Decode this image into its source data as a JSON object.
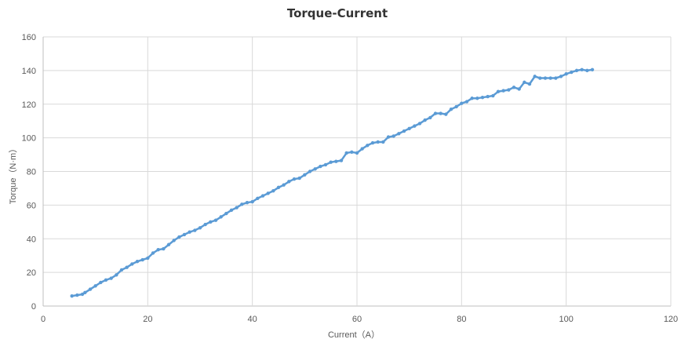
{
  "chart_data": {
    "type": "scatter",
    "title": "Torque-Current",
    "xlabel": "Current（A）",
    "ylabel": "Torque（N·m）",
    "xlim": [
      0,
      120
    ],
    "ylim": [
      0,
      160
    ],
    "xticks": [
      "0",
      "20",
      "40",
      "60",
      "80",
      "100",
      "120"
    ],
    "yticks": [
      "0",
      "20",
      "40",
      "60",
      "80",
      "100",
      "120",
      "140",
      "160"
    ],
    "grid": true,
    "series": [
      {
        "color": "#5b9bd5",
        "x": [
          5.5,
          6.5,
          7.5,
          8.0,
          9.0,
          10.0,
          11.0,
          12.0,
          13.0,
          14.0,
          15.0,
          16.0,
          17.0,
          18.0,
          19.0,
          20.0,
          21.0,
          22.0,
          23.0,
          24.0,
          25.0,
          26.0,
          27.0,
          28.0,
          29.0,
          30.0,
          31.0,
          32.0,
          33.0,
          34.0,
          35.0,
          36.0,
          37.0,
          38.0,
          39.0,
          40.0,
          41.0,
          42.0,
          43.0,
          44.0,
          45.0,
          46.0,
          47.0,
          48.0,
          49.0,
          50.0,
          51.0,
          52.0,
          53.0,
          54.0,
          55.0,
          56.0,
          57.0,
          58.0,
          59.0,
          60.0,
          61.0,
          62.0,
          63.0,
          64.0,
          65.0,
          66.0,
          67.0,
          68.0,
          69.0,
          70.0,
          71.0,
          72.0,
          73.0,
          74.0,
          75.0,
          76.0,
          77.0,
          78.0,
          79.0,
          80.0,
          81.0,
          82.0,
          83.0,
          84.0,
          85.0,
          86.0,
          87.0,
          88.0,
          89.0,
          90.0,
          91.0,
          92.0,
          93.0,
          94.0,
          95.0,
          96.0,
          97.0,
          98.0,
          99.0,
          100.0,
          101.0,
          102.0,
          103.0,
          104.0,
          105.0
        ],
        "y": [
          6,
          6.5,
          7,
          8,
          10,
          12,
          14,
          15.5,
          16.5,
          18.5,
          21.5,
          23,
          25,
          26.5,
          27.5,
          28.5,
          31.5,
          33.5,
          34,
          36.5,
          39,
          41,
          42.5,
          44,
          45,
          46.5,
          48.5,
          50,
          51,
          53,
          55,
          57,
          58.5,
          60.5,
          61.5,
          62,
          64,
          65.5,
          67,
          68.5,
          70.5,
          72,
          74,
          75.5,
          76,
          78,
          80,
          81.5,
          83,
          84,
          85.5,
          86,
          86.5,
          91,
          91.5,
          91,
          93.5,
          95.5,
          97,
          97.5,
          97.5,
          100.5,
          101,
          102.5,
          104,
          105.5,
          107,
          108.5,
          110.5,
          112,
          114.5,
          114.5,
          114,
          117,
          118.5,
          120.5,
          121.5,
          123.5,
          123.5,
          124,
          124.5,
          125,
          127.5,
          128,
          128.5,
          130,
          129,
          133,
          132,
          136.5,
          135.5,
          135.5,
          135.5,
          135.5,
          136.5,
          138,
          139,
          140,
          140.5,
          140,
          140.5
        ]
      }
    ]
  }
}
